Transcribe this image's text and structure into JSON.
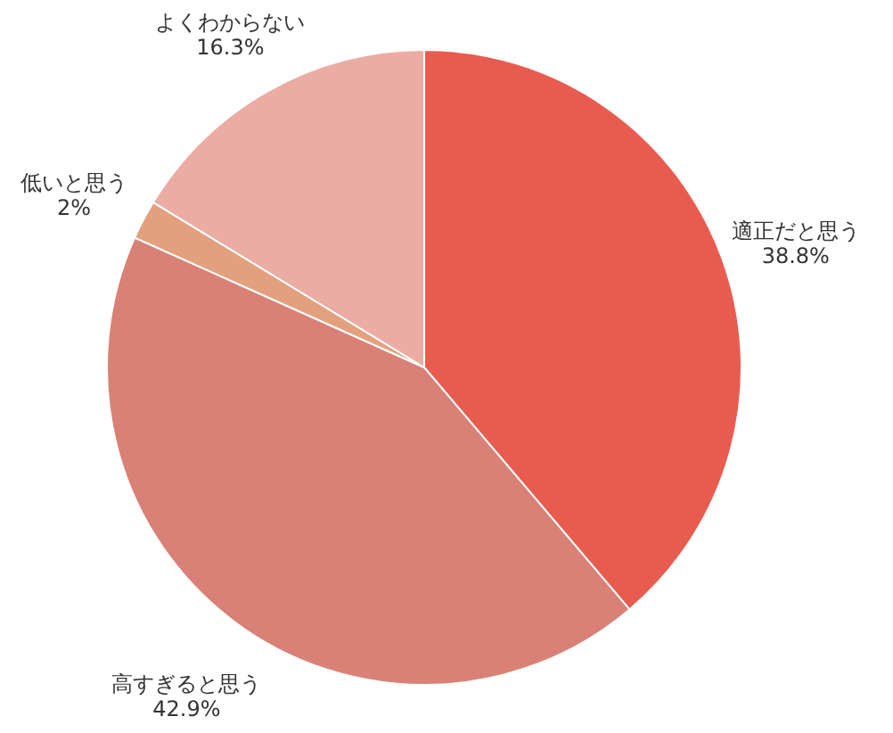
{
  "chart_data": {
    "type": "pie",
    "categories": [
      "適正だと思う",
      "高すぎると思う",
      "低いと思う",
      "よくわからない"
    ],
    "values": [
      38.8,
      42.9,
      2,
      16.3
    ],
    "colors": [
      "#e85c4f",
      "#d98176",
      "#e3a07f",
      "#ebaca4"
    ],
    "value_labels": [
      "38.8%",
      "42.9%",
      "2%",
      "16.3%"
    ]
  }
}
